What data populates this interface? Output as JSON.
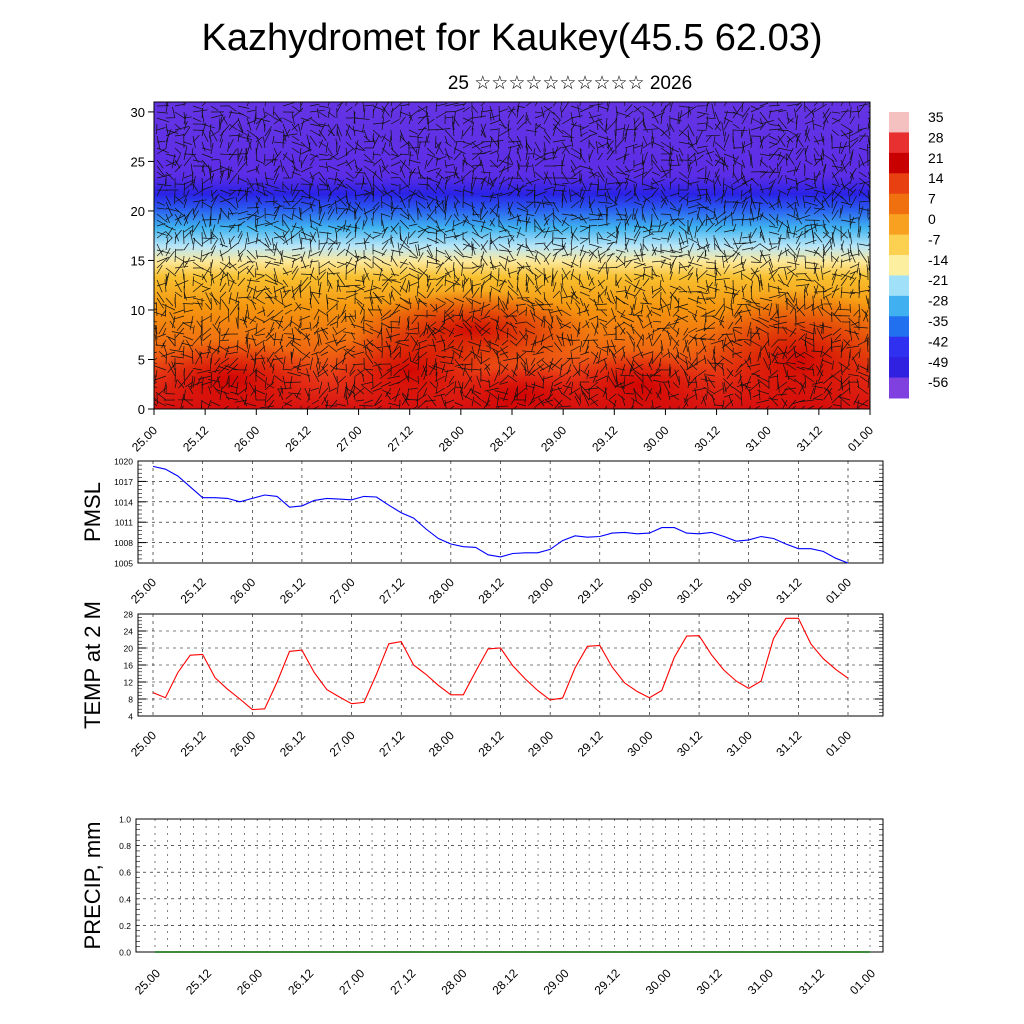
{
  "title": "Kazhydromet for Kaukey(45.5 62.03)",
  "subtitle": "25 ☆☆☆☆☆☆☆☆☆☆ 2026",
  "time_labels": [
    "25.00",
    "25.12",
    "26.00",
    "26.12",
    "27.00",
    "27.12",
    "28.00",
    "28.12",
    "29.00",
    "29.12",
    "30.00",
    "30.12",
    "31.00",
    "31.12",
    "01.00"
  ],
  "chart_data": [
    {
      "type": "heatmap",
      "name": "vertical-section",
      "xlabel": "",
      "ylabel": "",
      "yticks": [
        0,
        5,
        10,
        15,
        20,
        25,
        30
      ],
      "ylim": [
        0,
        31
      ],
      "colorbar": {
        "labels": [
          "35",
          "28",
          "21",
          "14",
          "7",
          "0",
          "-7",
          "-14",
          "-21",
          "-28",
          "-35",
          "-42",
          "-49",
          "-56"
        ],
        "colors": [
          "#f4c0c0",
          "#e83030",
          "#c80000",
          "#e84010",
          "#f07010",
          "#f8a020",
          "#fcd050",
          "#fcf0a0",
          "#a0e0f8",
          "#40b0f0",
          "#2070f0",
          "#3030f0",
          "#3020e0",
          "#8040e0"
        ]
      },
      "vectors": true,
      "bands": [
        {
          "from": 0,
          "to": 3,
          "value": 24
        },
        {
          "from": 3,
          "to": 9,
          "value": 14
        },
        {
          "from": 9,
          "to": 13,
          "value": 7
        },
        {
          "from": 13,
          "to": 16,
          "value": -8
        },
        {
          "from": 16,
          "to": 19,
          "value": -25
        },
        {
          "from": 19,
          "to": 22,
          "value": -45
        },
        {
          "from": 22,
          "to": 31,
          "value": -55
        }
      ]
    },
    {
      "type": "line",
      "ylabel": "PMSL",
      "ylim": [
        1005,
        1020
      ],
      "yticks": [
        "1020",
        "1017",
        "1014",
        "1011",
        "1008",
        "1005"
      ],
      "color": "#0000ff",
      "values": [
        1019.2,
        1018.8,
        1017.8,
        1016.2,
        1014.6,
        1014.6,
        1014.5,
        1014.0,
        1014.5,
        1015.0,
        1014.8,
        1013.2,
        1013.4,
        1014.2,
        1014.5,
        1014.4,
        1014.3,
        1014.8,
        1014.7,
        1013.5,
        1012.4,
        1011.6,
        1010.0,
        1008.6,
        1007.8,
        1007.4,
        1007.3,
        1006.2,
        1005.9,
        1006.4,
        1006.5,
        1006.5,
        1007.0,
        1008.3,
        1009.0,
        1008.8,
        1008.9,
        1009.4,
        1009.5,
        1009.3,
        1009.4,
        1010.2,
        1010.2,
        1009.4,
        1009.3,
        1009.5,
        1008.9,
        1008.2,
        1008.4,
        1008.9,
        1008.6,
        1007.8,
        1007.1,
        1007.1,
        1006.7,
        1005.7,
        1005.0
      ]
    },
    {
      "type": "line",
      "ylabel": "TEMP at 2 M",
      "ylim": [
        4,
        28
      ],
      "yticks": [
        "28",
        "24",
        "20",
        "16",
        "12",
        "8",
        "4"
      ],
      "color": "#ff0000",
      "values": [
        9.5,
        8.3,
        14.2,
        18.3,
        18.5,
        13.0,
        10.3,
        8.0,
        5.5,
        5.7,
        12.0,
        19.2,
        19.5,
        14.2,
        10.2,
        8.5,
        6.9,
        7.2,
        13.8,
        21.0,
        21.5,
        16.0,
        13.8,
        11.2,
        9.0,
        9.0,
        14.5,
        19.8,
        20.0,
        15.8,
        12.7,
        10.0,
        7.8,
        8.2,
        15.3,
        20.4,
        20.6,
        15.5,
        11.8,
        9.8,
        8.3,
        10.0,
        17.8,
        22.8,
        22.9,
        18.4,
        14.8,
        12.2,
        10.5,
        12.2,
        22.2,
        27.0,
        27.0,
        21.0,
        17.5,
        15.0,
        12.9
      ]
    },
    {
      "type": "line",
      "ylabel": "PRECIP, mm",
      "ylim": [
        0,
        1
      ],
      "yticks": [
        "1.0",
        "0.8",
        "0.6",
        "0.4",
        "0.2",
        "0.0"
      ],
      "color": "#006400",
      "values": [
        0,
        0,
        0,
        0,
        0,
        0,
        0,
        0,
        0,
        0,
        0,
        0,
        0,
        0,
        0,
        0,
        0,
        0,
        0,
        0,
        0,
        0,
        0,
        0,
        0,
        0,
        0,
        0,
        0,
        0,
        0,
        0,
        0,
        0,
        0,
        0,
        0,
        0,
        0,
        0,
        0,
        0,
        0,
        0,
        0,
        0,
        0,
        0,
        0,
        0,
        0,
        0,
        0,
        0,
        0,
        0,
        0
      ]
    }
  ]
}
